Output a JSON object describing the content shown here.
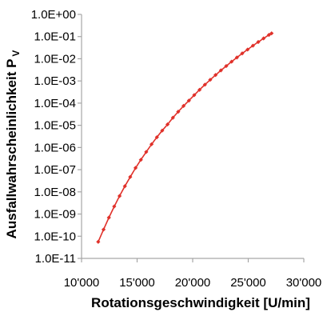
{
  "chart_data": {
    "type": "scatter",
    "title": "",
    "xlabel": "Rotationsgeschwindigkeit [U/min]",
    "ylabel": "Ausfallwahrscheinlichkeit P",
    "ylabel_subscript": "V",
    "y_scale": "log",
    "xlim": [
      10000,
      30000
    ],
    "ylim": [
      1e-11,
      1
    ],
    "x_ticks": [
      10000,
      15000,
      20000,
      25000,
      30000
    ],
    "x_tick_labels": [
      "10'000",
      "15'000",
      "20'000",
      "25'000",
      "30'000"
    ],
    "y_ticks": [
      1e-11,
      1e-10,
      1e-09,
      1e-08,
      1e-07,
      1e-06,
      1e-05,
      0.0001,
      0.001,
      0.01,
      0.1,
      1
    ],
    "y_tick_labels": [
      "1.0E-11",
      "1.0E-10",
      "1.0E-09",
      "1.0E-08",
      "1.0E-07",
      "1.0E-06",
      "1.0E-05",
      "1.0E-04",
      "1.0E-03",
      "1.0E-02",
      "1.0E-01",
      "1.0E+00"
    ],
    "grid": false,
    "legend": "none",
    "colors": {
      "series": "#e0312a",
      "axis": "#a6a6a6",
      "text": "#000000"
    },
    "series": [
      {
        "x": [
          11500,
          11980,
          12460,
          12940,
          13420,
          13900,
          14380,
          14860,
          15340,
          15820,
          16300,
          16780,
          17260,
          17740,
          18220,
          18700,
          19180,
          19660,
          20140,
          20620,
          21100,
          21580,
          22060,
          22540,
          23020,
          23500,
          23980,
          24460,
          24940,
          25420,
          25900,
          26380,
          26860,
          27100
        ],
        "y": [
          5.6e-11,
          2e-10,
          6.9e-10,
          2.2e-09,
          6.5e-09,
          1.8e-08,
          4.7e-08,
          1.2e-07,
          2.8e-07,
          6.3e-07,
          1.4e-06,
          2.9e-06,
          5.8e-06,
          1.1e-05,
          2.2e-05,
          4.1e-05,
          7.5e-05,
          0.00013,
          0.00023,
          0.0004,
          0.00068,
          0.00113,
          0.00185,
          0.00298,
          0.0047,
          0.0074,
          0.0114,
          0.0174,
          0.026,
          0.039,
          0.057,
          0.083,
          0.119,
          0.14
        ]
      }
    ]
  }
}
